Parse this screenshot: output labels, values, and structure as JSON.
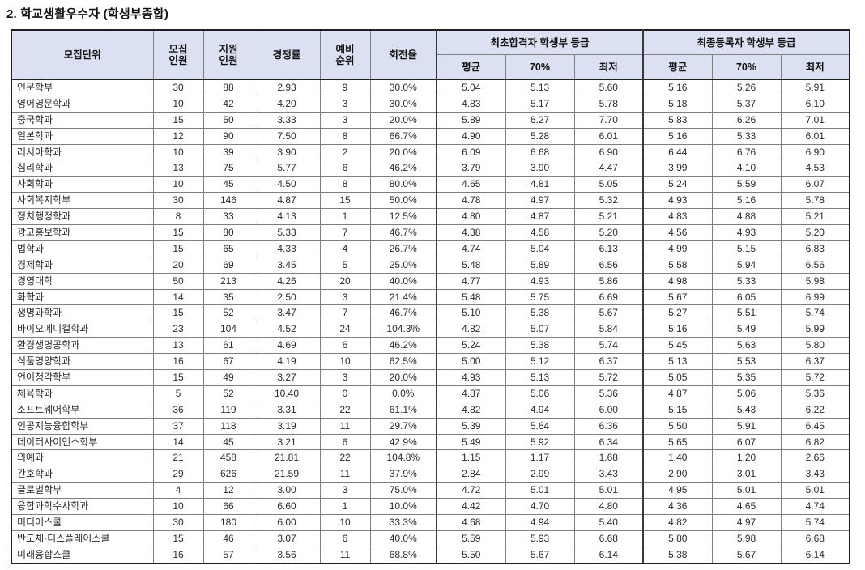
{
  "page": {
    "title": "2. 학교생활우수자 (학생부종합)"
  },
  "colors": {
    "header_bg": "#dbe1f2",
    "outer_border": "#1f1f1f",
    "inner_border": "#808080",
    "text": "#2b2b2b"
  },
  "table": {
    "headers": {
      "unit": "모집단위",
      "quota_l1": "모집",
      "quota_l2": "인원",
      "applicants_l1": "지원",
      "applicants_l2": "인원",
      "ratio": "경쟁률",
      "waitlist_l1": "예비",
      "waitlist_l2": "순위",
      "turnover": "회전율",
      "group_initial": "최초합격자 학생부 등급",
      "group_final": "최종등록자 학생부 등급",
      "sub_avg": "평균",
      "sub_70": "70%",
      "sub_min": "최저"
    },
    "rows": [
      {
        "unit": "인문학부",
        "values": [
          "30",
          "88",
          "2.93",
          "9",
          "30.0%",
          "5.04",
          "5.13",
          "5.60",
          "5.16",
          "5.26",
          "5.91"
        ]
      },
      {
        "unit": "영어영문학과",
        "values": [
          "10",
          "42",
          "4.20",
          "3",
          "30.0%",
          "4.83",
          "5.17",
          "5.78",
          "5.18",
          "5.37",
          "6.10"
        ]
      },
      {
        "unit": "중국학과",
        "values": [
          "15",
          "50",
          "3.33",
          "3",
          "20.0%",
          "5.89",
          "6.27",
          "7.70",
          "5.83",
          "6.26",
          "7.01"
        ]
      },
      {
        "unit": "일본학과",
        "values": [
          "12",
          "90",
          "7.50",
          "8",
          "66.7%",
          "4.90",
          "5.28",
          "6.01",
          "5.16",
          "5.33",
          "6.01"
        ]
      },
      {
        "unit": "러시아학과",
        "values": [
          "10",
          "39",
          "3.90",
          "2",
          "20.0%",
          "6.09",
          "6.68",
          "6.90",
          "6.44",
          "6.76",
          "6.90"
        ]
      },
      {
        "unit": "심리학과",
        "values": [
          "13",
          "75",
          "5.77",
          "6",
          "46.2%",
          "3.79",
          "3.90",
          "4.47",
          "3.99",
          "4.10",
          "4.53"
        ]
      },
      {
        "unit": "사회학과",
        "values": [
          "10",
          "45",
          "4.50",
          "8",
          "80.0%",
          "4.65",
          "4.81",
          "5.05",
          "5.24",
          "5.59",
          "6.07"
        ]
      },
      {
        "unit": "사회복지학부",
        "values": [
          "30",
          "146",
          "4.87",
          "15",
          "50.0%",
          "4.78",
          "4.97",
          "5.32",
          "4.93",
          "5.16",
          "5.78"
        ]
      },
      {
        "unit": "정치행정학과",
        "values": [
          "8",
          "33",
          "4.13",
          "1",
          "12.5%",
          "4.80",
          "4.87",
          "5.21",
          "4.83",
          "4.88",
          "5.21"
        ]
      },
      {
        "unit": "광고홍보학과",
        "values": [
          "15",
          "80",
          "5.33",
          "7",
          "46.7%",
          "4.38",
          "4.58",
          "5.20",
          "4.56",
          "4.93",
          "5.20"
        ]
      },
      {
        "unit": "법학과",
        "values": [
          "15",
          "65",
          "4.33",
          "4",
          "26.7%",
          "4.74",
          "5.04",
          "6.13",
          "4.99",
          "5.15",
          "6.83"
        ]
      },
      {
        "unit": "경제학과",
        "values": [
          "20",
          "69",
          "3.45",
          "5",
          "25.0%",
          "5.48",
          "5.89",
          "6.56",
          "5.58",
          "5.94",
          "6.56"
        ]
      },
      {
        "unit": "경영대학",
        "values": [
          "50",
          "213",
          "4.26",
          "20",
          "40.0%",
          "4.77",
          "4.93",
          "5.86",
          "4.98",
          "5.33",
          "5.98"
        ]
      },
      {
        "unit": "화학과",
        "values": [
          "14",
          "35",
          "2.50",
          "3",
          "21.4%",
          "5.48",
          "5.75",
          "6.69",
          "5.67",
          "6.05",
          "6.99"
        ]
      },
      {
        "unit": "생명과학과",
        "values": [
          "15",
          "52",
          "3.47",
          "7",
          "46.7%",
          "5.10",
          "5.38",
          "5.67",
          "5.27",
          "5.51",
          "5.74"
        ]
      },
      {
        "unit": "바이오메디컬학과",
        "values": [
          "23",
          "104",
          "4.52",
          "24",
          "104.3%",
          "4.82",
          "5.07",
          "5.84",
          "5.16",
          "5.49",
          "5.99"
        ]
      },
      {
        "unit": "환경생명공학과",
        "values": [
          "13",
          "61",
          "4.69",
          "6",
          "46.2%",
          "5.24",
          "5.38",
          "5.74",
          "5.45",
          "5.63",
          "5.80"
        ]
      },
      {
        "unit": "식품영양학과",
        "values": [
          "16",
          "67",
          "4.19",
          "10",
          "62.5%",
          "5.00",
          "5.12",
          "6.37",
          "5.13",
          "5.53",
          "6.37"
        ]
      },
      {
        "unit": "언어청각학부",
        "values": [
          "15",
          "49",
          "3.27",
          "3",
          "20.0%",
          "4.93",
          "5.13",
          "5.72",
          "5.05",
          "5.35",
          "5.72"
        ]
      },
      {
        "unit": "체육학과",
        "values": [
          "5",
          "52",
          "10.40",
          "0",
          "0.0%",
          "4.87",
          "5.06",
          "5.36",
          "4.87",
          "5.06",
          "5.36"
        ]
      },
      {
        "unit": "소프트웨어학부",
        "values": [
          "36",
          "119",
          "3.31",
          "22",
          "61.1%",
          "4.82",
          "4.94",
          "6.00",
          "5.15",
          "5.43",
          "6.22"
        ]
      },
      {
        "unit": "인공지능융합학부",
        "values": [
          "37",
          "118",
          "3.19",
          "11",
          "29.7%",
          "5.39",
          "5.64",
          "6.36",
          "5.50",
          "5.91",
          "6.45"
        ]
      },
      {
        "unit": "데이터사이언스학부",
        "values": [
          "14",
          "45",
          "3.21",
          "6",
          "42.9%",
          "5.49",
          "5.92",
          "6.34",
          "5.65",
          "6.07",
          "6.82"
        ]
      },
      {
        "unit": "의예과",
        "values": [
          "21",
          "458",
          "21.81",
          "22",
          "104.8%",
          "1.15",
          "1.17",
          "1.68",
          "1.40",
          "1.20",
          "2.66"
        ]
      },
      {
        "unit": "간호학과",
        "values": [
          "29",
          "626",
          "21.59",
          "11",
          "37.9%",
          "2.84",
          "2.99",
          "3.43",
          "2.90",
          "3.01",
          "3.43"
        ]
      },
      {
        "unit": "글로벌학부",
        "values": [
          "4",
          "12",
          "3.00",
          "3",
          "75.0%",
          "4.72",
          "5.01",
          "5.01",
          "4.95",
          "5.01",
          "5.01"
        ]
      },
      {
        "unit": "융합과학수사학과",
        "values": [
          "10",
          "66",
          "6.60",
          "1",
          "10.0%",
          "4.42",
          "4.70",
          "4.80",
          "4.36",
          "4.65",
          "4.74"
        ]
      },
      {
        "unit": "미디어스쿨",
        "values": [
          "30",
          "180",
          "6.00",
          "10",
          "33.3%",
          "4.68",
          "4.94",
          "5.40",
          "4.82",
          "4.97",
          "5.74"
        ]
      },
      {
        "unit": "반도체·디스플레이스쿨",
        "values": [
          "15",
          "46",
          "3.07",
          "6",
          "40.0%",
          "5.59",
          "5.93",
          "6.68",
          "5.80",
          "5.98",
          "6.68"
        ]
      },
      {
        "unit": "미래융합스쿨",
        "values": [
          "16",
          "57",
          "3.56",
          "11",
          "68.8%",
          "5.50",
          "5.67",
          "6.14",
          "5.38",
          "5.67",
          "6.14"
        ]
      }
    ]
  }
}
